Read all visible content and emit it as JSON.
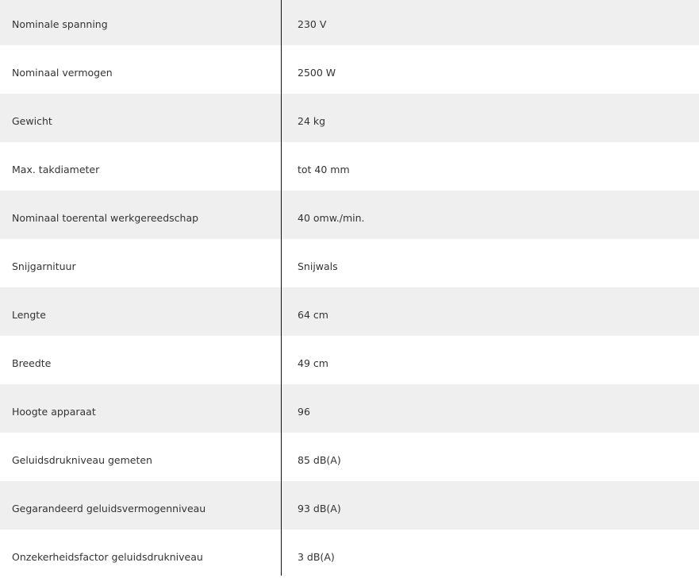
{
  "specs": [
    {
      "label": "Nominale spanning",
      "value": "230 V"
    },
    {
      "label": "Nominaal vermogen",
      "value": "2500 W"
    },
    {
      "label": "Gewicht",
      "value": "24 kg"
    },
    {
      "label": "Max. takdiameter",
      "value": "tot 40 mm"
    },
    {
      "label": "Nominaal toerental werkgereedschap",
      "value": "40 omw./min."
    },
    {
      "label": "Snijgarnituur",
      "value": "Snijwals"
    },
    {
      "label": "Lengte",
      "value": "64 cm"
    },
    {
      "label": "Breedte",
      "value": "49 cm"
    },
    {
      "label": "Hoogte apparaat",
      "value": "96"
    },
    {
      "label": "Geluidsdrukniveau gemeten",
      "value": "85 dB(A)"
    },
    {
      "label": "Gegarandeerd geluidsvermogenniveau",
      "value": "93 dB(A)"
    },
    {
      "label": "Onzekerheidsfactor geluidsdrukniveau",
      "value": "3 dB(A)"
    }
  ]
}
